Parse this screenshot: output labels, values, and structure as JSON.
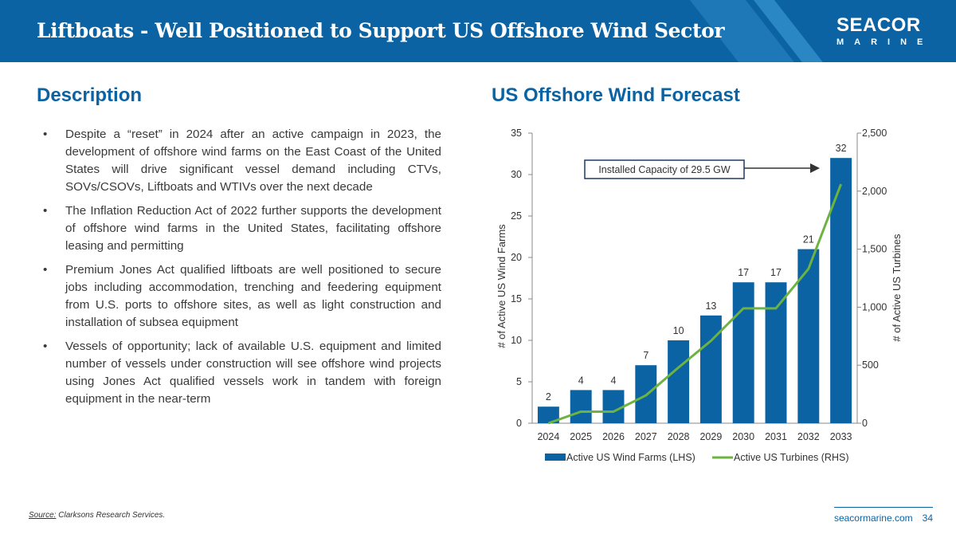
{
  "header": {
    "title": "Liftboats - Well Positioned to Support US Offshore Wind Sector",
    "logo_line1": "SEACOR",
    "logo_line2": "MARINE"
  },
  "description": {
    "heading": "Description",
    "bullet_symbol": "•",
    "bullets": [
      "Despite a “reset” in 2024 after an active campaign in 2023, the development of offshore wind farms on the East Coast of the United States will drive significant vessel demand including CTVs, SOVs/CSOVs, Liftboats and WTIVs over the next decade",
      "The Inflation Reduction Act of 2022 further supports the development of offshore wind farms in the United States, facilitating offshore leasing and permitting",
      "Premium Jones Act qualified liftboats are well positioned to secure jobs including accommodation, trenching and feedering equipment from U.S. ports to offshore sites, as well as light construction and installation of subsea equipment",
      "Vessels of opportunity; lack of available U.S. equipment and limited number of vessels under construction will see offshore wind projects using Jones Act qualified vessels work in tandem with foreign equipment in the near-term"
    ]
  },
  "forecast": {
    "heading": "US Offshore Wind Forecast"
  },
  "chart_data": {
    "type": "bar",
    "categories": [
      "2024",
      "2025",
      "2026",
      "2027",
      "2028",
      "2029",
      "2030",
      "2031",
      "2032",
      "2033"
    ],
    "series": [
      {
        "name": "Active US Wind Farms (LHS)",
        "type": "bar",
        "axis": "left",
        "values": [
          2,
          4,
          4,
          7,
          10,
          13,
          17,
          17,
          21,
          32
        ]
      },
      {
        "name": "Active US Turbines (RHS)",
        "type": "line",
        "axis": "right",
        "values": [
          0,
          100,
          100,
          240,
          480,
          710,
          990,
          990,
          1330,
          2060
        ]
      }
    ],
    "y_left": {
      "label": "# of Active US Wind Farms",
      "min": 0,
      "max": 35,
      "ticks": [
        "0",
        "5",
        "10",
        "15",
        "20",
        "25",
        "30",
        "35"
      ]
    },
    "y_right": {
      "label": "# of Active US Turbines",
      "min": 0,
      "max": 2500,
      "ticks": [
        "0",
        "500",
        "1,000",
        "1,500",
        "2,000",
        "2,500"
      ]
    },
    "data_labels": [
      "2",
      "4",
      "4",
      "7",
      "10",
      "13",
      "17",
      "17",
      "21",
      "32"
    ],
    "annotation": "Installed Capacity of 29.5 GW",
    "legend_position": "bottom",
    "bar_color": "#0b63a3",
    "line_color": "#6db33f"
  },
  "source": {
    "label": "Source:",
    "text": " Clarksons Research Services."
  },
  "footer": {
    "site": "seacormarine.com",
    "page": "34"
  },
  "colors": {
    "brand": "#0b63a3",
    "text": "#3a3a3a"
  }
}
